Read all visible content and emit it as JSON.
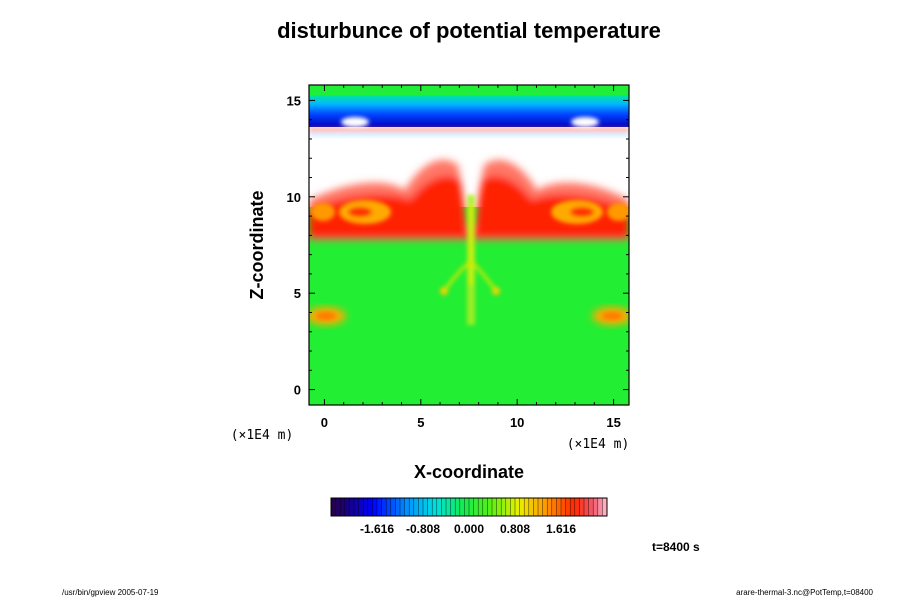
{
  "chart_data": {
    "type": "heatmap",
    "title": "disturbunce of potential temperature",
    "xlabel": "X-coordinate",
    "ylabel": "Z-coordinate",
    "x_unit": "(×1E4 m)",
    "x_unit_right": "(×1E4 m)",
    "xlim": [
      -0.8,
      15.8
    ],
    "ylim": [
      -0.8,
      15.8
    ],
    "x_ticks": [
      0,
      5,
      10,
      15
    ],
    "y_ticks": [
      0,
      5,
      10,
      15
    ],
    "x_tick_labels": [
      "0",
      "5",
      "10",
      "15"
    ],
    "y_tick_labels": [
      "0",
      "5",
      "10",
      "15"
    ],
    "colorbar": {
      "vmin": -2.424,
      "vmax": 2.424,
      "tick_values": [
        -1.616,
        -0.808,
        0.0,
        0.808,
        1.616
      ],
      "tick_labels": [
        "-1.616",
        "-0.808",
        "0.000",
        "0.808",
        "1.616"
      ]
    },
    "time_label": "t=8400 s"
  },
  "footer": {
    "left": "/usr/bin/gpview 2005-07-19",
    "right": "arare-thermal-3.nc@PotTemp,t=08400"
  },
  "colors": {
    "background_field": "#22ee33",
    "warm": "#ff3300",
    "cold": "#0000ff",
    "white_gap": "#ffffff"
  }
}
